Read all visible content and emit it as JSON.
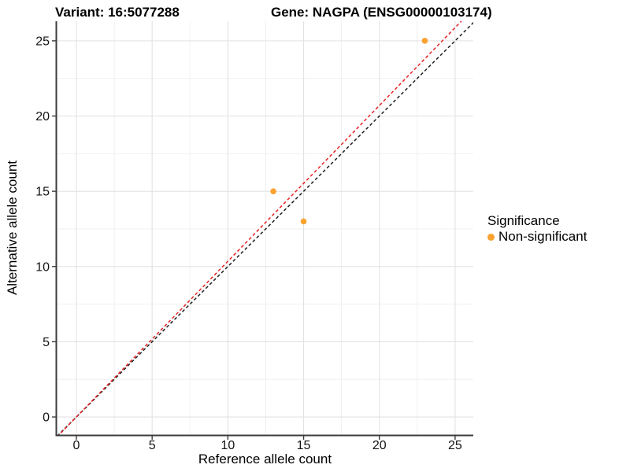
{
  "chart_data": {
    "type": "scatter",
    "title_left": "Variant: 16:5077288",
    "title_right": "Gene: NAGPA (ENSG00000103174)",
    "xlabel": "Reference allele count",
    "ylabel": "Alternative allele count",
    "xlim": [
      -1.3,
      26.2
    ],
    "ylim": [
      -1.2,
      26.3
    ],
    "xticks": [
      0,
      5,
      10,
      15,
      20,
      25
    ],
    "yticks": [
      0,
      5,
      10,
      15,
      20,
      25
    ],
    "xticks_minor": [
      2.5,
      7.5,
      12.5,
      17.5,
      22.5
    ],
    "yticks_minor": [
      2.5,
      7.5,
      12.5,
      17.5,
      22.5
    ],
    "grid": true,
    "series": [
      {
        "name": "Non-significant",
        "color": "#F9A22E",
        "points": [
          {
            "x": 13,
            "y": 15
          },
          {
            "x": 15,
            "y": 13
          },
          {
            "x": 23,
            "y": 25
          }
        ]
      }
    ],
    "lines": [
      {
        "name": "identity-line",
        "slope": 1.0,
        "intercept": 0,
        "color": "#1F1F1F",
        "style": "dashed"
      },
      {
        "name": "fitted-line",
        "slope": 1.035,
        "intercept": 0,
        "color": "#E82020",
        "style": "dashed"
      }
    ],
    "legend": {
      "title": "Significance",
      "position": "right",
      "items": [
        {
          "label": "Non-significant",
          "color": "#F9A22E"
        }
      ]
    },
    "colors": {
      "background": "#FFFFFF",
      "grid_major": "#E2E2E2",
      "grid_minor": "#F0F0F0",
      "axis_line": "#3C3C3C",
      "tick_label": "#141414",
      "point": "#F9A22E",
      "identity_line": "#1F1F1F",
      "fitted_line": "#E82020"
    }
  }
}
